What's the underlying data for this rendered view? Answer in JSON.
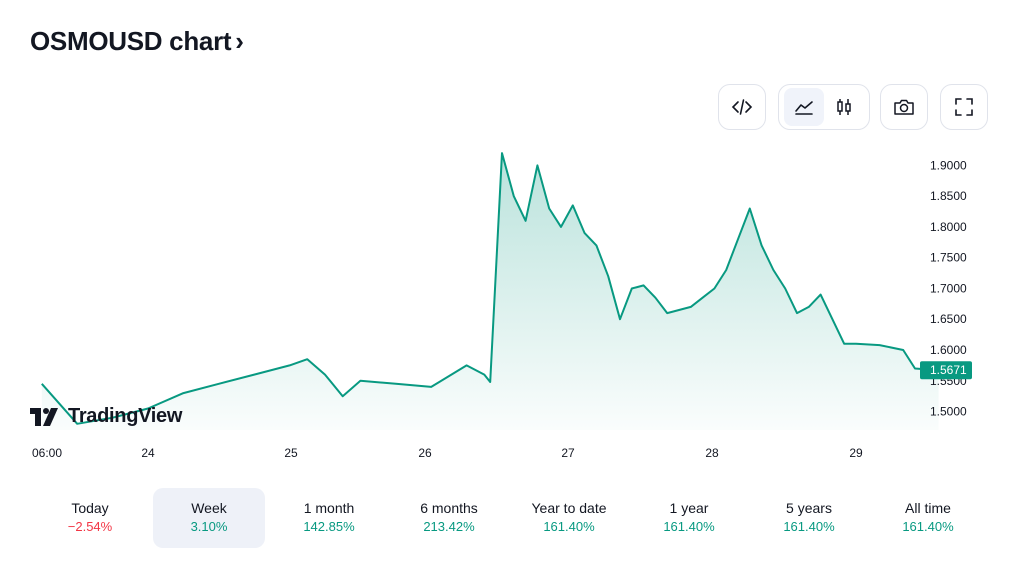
{
  "header": {
    "title": "OSMOUSD chart",
    "chevron": "›"
  },
  "toolbar": [
    {
      "icon": "embed-code-icon",
      "active": false
    },
    {
      "icon": "line-chart-icon",
      "active": true
    },
    {
      "icon": "candles-icon",
      "active": false
    },
    {
      "icon": "camera-icon",
      "active": false
    },
    {
      "icon": "fullscreen-icon",
      "active": false
    }
  ],
  "brand": {
    "name": "TradingView"
  },
  "colors": {
    "line": "#089981",
    "up": "#089981",
    "down": "#f23645",
    "grid_text": "#131722"
  },
  "chart_data": {
    "type": "area",
    "symbol": "OSMOUSD",
    "x_tick_labels": [
      "06:00",
      "24",
      "25",
      "26",
      "27",
      "28",
      "29"
    ],
    "y_tick_labels": [
      "1.9000",
      "1.8500",
      "1.8000",
      "1.7500",
      "1.7000",
      "1.6500",
      "1.6000",
      "1.5500",
      "1.5000"
    ],
    "ylim": [
      1.47,
      1.925
    ],
    "last_price": "1.5671",
    "x": [
      "23 06:00",
      "23 12:00",
      "23 18:00",
      "24 00:00",
      "24 06:00",
      "24 12:00",
      "24 18:00",
      "25 00:00",
      "25 03:00",
      "25 06:00",
      "25 09:00",
      "25 12:00",
      "25 18:00",
      "26 00:00",
      "26 06:00",
      "26 09:00",
      "26 10:00",
      "26 12:00",
      "26 14:00",
      "26 16:00",
      "26 18:00",
      "26 20:00",
      "26 22:00",
      "27 00:00",
      "27 02:00",
      "27 04:00",
      "27 06:00",
      "27 08:00",
      "27 10:00",
      "27 12:00",
      "27 14:00",
      "27 16:00",
      "27 18:00",
      "27 20:00",
      "27 22:00",
      "28 00:00",
      "28 02:00",
      "28 04:00",
      "28 06:00",
      "28 08:00",
      "28 10:00",
      "28 12:00",
      "28 14:00",
      "28 16:00",
      "28 18:00",
      "28 20:00",
      "28 22:00",
      "29 00:00",
      "29 04:00",
      "29 08:00",
      "29 10:00",
      "29 14:00"
    ],
    "y": [
      1.545,
      1.48,
      1.49,
      1.505,
      1.53,
      1.545,
      1.56,
      1.575,
      1.585,
      1.56,
      1.525,
      1.55,
      1.545,
      1.54,
      1.575,
      1.56,
      1.548,
      1.92,
      1.85,
      1.81,
      1.9,
      1.83,
      1.8,
      1.835,
      1.79,
      1.77,
      1.72,
      1.65,
      1.7,
      1.705,
      1.685,
      1.66,
      1.665,
      1.67,
      1.685,
      1.7,
      1.73,
      1.78,
      1.83,
      1.77,
      1.73,
      1.7,
      1.66,
      1.67,
      1.69,
      1.65,
      1.61,
      1.61,
      1.608,
      1.6,
      1.57,
      1.5671
    ]
  }
}
